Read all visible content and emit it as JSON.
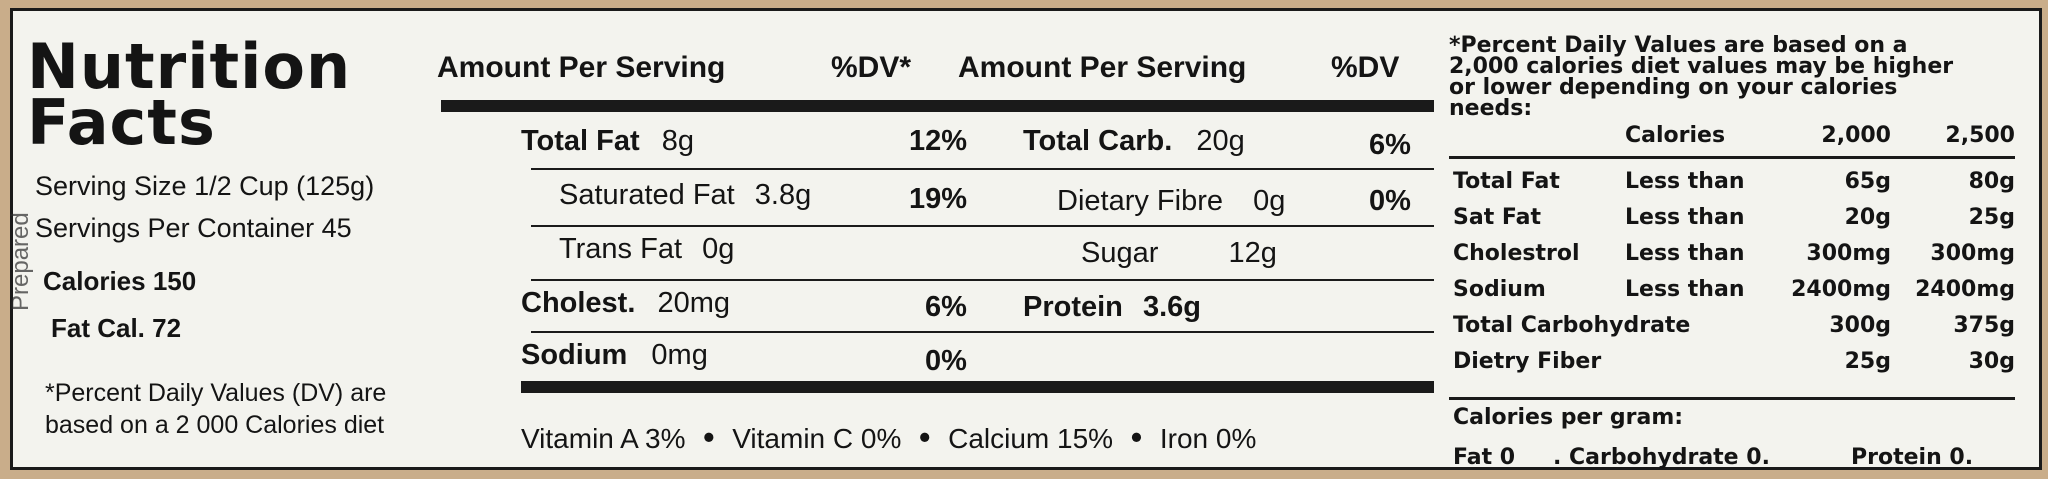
{
  "title": {
    "line1": "Nutrition",
    "line2": "Facts"
  },
  "left": {
    "serving_size": "Serving Size 1/2 Cup (125g)",
    "servings_per_container": "Servings  Per Container 45",
    "calories": "Calories 150",
    "fat_cal": "Fat Cal. 72",
    "note_line1": "*Percent Daily Values (DV) are",
    "note_line2": "based on a 2 000 Calories diet"
  },
  "side_label": "Prepared",
  "header": {
    "amount1": "Amount Per Serving",
    "dv1": "%DV*",
    "amount2": "Amount Per Serving",
    "dv2": "%DV"
  },
  "rows": {
    "total_fat": {
      "label": "Total Fat",
      "amount": "8g",
      "dv": "12%"
    },
    "saturated_fat": {
      "label": "Saturated Fat",
      "amount": "3.8g",
      "dv": "19%"
    },
    "trans_fat": {
      "label": "Trans Fat",
      "amount": "0g"
    },
    "cholest": {
      "label": "Cholest.",
      "amount": "20mg",
      "dv": "6%"
    },
    "sodium": {
      "label": "Sodium",
      "amount": "0mg",
      "dv": "0%"
    },
    "total_carb": {
      "label": "Total Carb.",
      "amount": "20g",
      "dv": "6%"
    },
    "dietary_fibre": {
      "label": "Dietary Fibre",
      "amount": "0g",
      "dv": "0%"
    },
    "sugar": {
      "label": "Sugar",
      "amount": "12g"
    },
    "protein": {
      "label": "Protein",
      "amount": "3.6g"
    }
  },
  "vitamins": {
    "vit_a": "Vitamin A 3%",
    "vit_c": "Vitamin C 0%",
    "calcium": "Calcium 15%",
    "iron": "Iron 0%",
    "separator": "•"
  },
  "right": {
    "intro_line1": "*Percent Daily Values are based on a",
    "intro_line2": "2,000 calories diet values may be higher",
    "intro_line3": "or lower depending on your calories",
    "intro_line4": "needs:",
    "col_calories": "Calories",
    "col_2000": "2,000",
    "col_2500": "2,500",
    "table": [
      {
        "name": "Total Fat",
        "qual": "Less than",
        "v1": "65g",
        "v2": "80g"
      },
      {
        "name": "Sat Fat",
        "qual": "Less than",
        "v1": "20g",
        "v2": "25g"
      },
      {
        "name": "Cholestrol",
        "qual": "Less than",
        "v1": "300mg",
        "v2": "300mg"
      },
      {
        "name": "Sodium",
        "qual": "Less than",
        "v1": "2400mg",
        "v2": "2400mg"
      },
      {
        "name": "Total Carbohydrate",
        "qual": "",
        "v1": "300g",
        "v2": "375g"
      },
      {
        "name": "Dietry Fiber",
        "qual": "",
        "v1": "25g",
        "v2": "30g"
      }
    ],
    "cal_per_gram": "Calories per gram:",
    "fat": "Fat  0",
    "carb": ". Carbohydrate 0.",
    "protein": "Protein 0."
  }
}
